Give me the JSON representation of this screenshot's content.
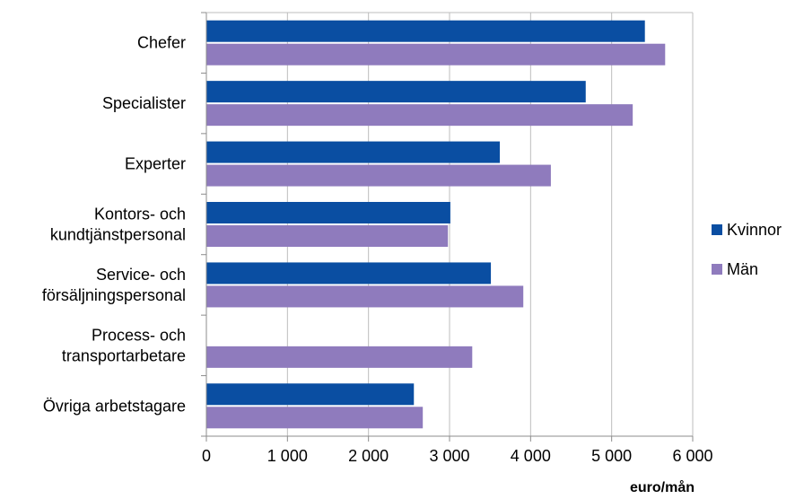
{
  "chart_data": {
    "type": "bar",
    "orientation": "horizontal",
    "categories": [
      [
        "Chefer"
      ],
      [
        "Specialister"
      ],
      [
        "Experter"
      ],
      [
        "Kontors- och",
        "kundtjänstpersonal"
      ],
      [
        "Service- och",
        "försäljningspersonal"
      ],
      [
        "Process- och",
        "transportarbetare"
      ],
      [
        "Övriga arbetstagare"
      ]
    ],
    "series": [
      {
        "name": "Kvinnor",
        "color": "#0a4ea2",
        "values": [
          5410,
          4680,
          3620,
          3010,
          3510,
          null,
          2560
        ]
      },
      {
        "name": "Män",
        "color": "#8f7bbd",
        "values": [
          5660,
          5260,
          4250,
          2980,
          3910,
          3280,
          2670
        ]
      }
    ],
    "x_ticks": [
      "0",
      "1 000",
      "2 000",
      "3 000",
      "4 000",
      "5 000",
      "6 000"
    ],
    "xlim": [
      0,
      6000
    ],
    "xlabel": "euro/mån",
    "grid": "vertical",
    "legend": "right"
  }
}
